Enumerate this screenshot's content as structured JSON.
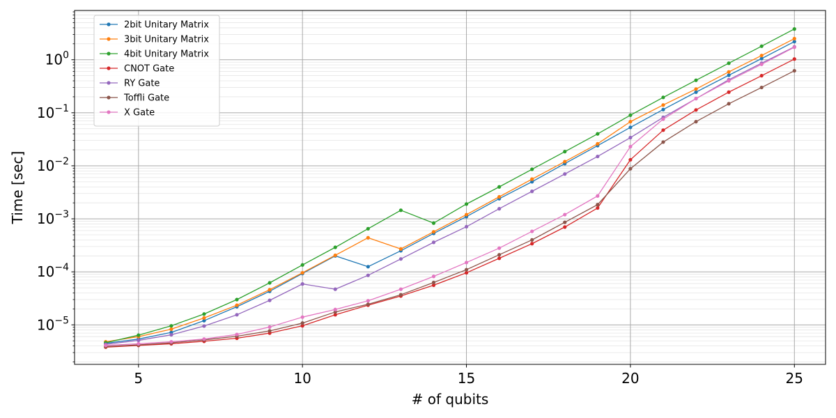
{
  "chart_data": {
    "type": "line",
    "title": "",
    "xlabel": "# of qubits",
    "ylabel": "Time [sec]",
    "yscale": "log",
    "xlim": [
      3.05,
      25.95
    ],
    "ylim": [
      1.8e-06,
      8.5
    ],
    "grid": true,
    "legend_position": "top-left",
    "x": [
      4,
      5,
      6,
      7,
      8,
      9,
      10,
      11,
      12,
      13,
      14,
      15,
      16,
      17,
      18,
      19,
      20,
      21,
      22,
      23,
      24,
      25
    ],
    "x_ticks": [
      {
        "value": 5,
        "label": "5"
      },
      {
        "value": 10,
        "label": "10"
      },
      {
        "value": 15,
        "label": "15"
      },
      {
        "value": 20,
        "label": "20"
      },
      {
        "value": 25,
        "label": "25"
      }
    ],
    "y_ticks": [
      {
        "exp": -5,
        "base": "10",
        "sup": "−5"
      },
      {
        "exp": -4,
        "base": "10",
        "sup": "−4"
      },
      {
        "exp": -3,
        "base": "10",
        "sup": "−3"
      },
      {
        "exp": -2,
        "base": "10",
        "sup": "−2"
      },
      {
        "exp": -1,
        "base": "10",
        "sup": "−1"
      },
      {
        "exp": 0,
        "base": "10",
        "sup": "0"
      }
    ],
    "series": [
      {
        "name": "2bit Unitary Matrix",
        "color": "#1f77b4",
        "values": [
          4.5e-06,
          5.4e-06,
          7.2e-06,
          1.2e-05,
          2.2e-05,
          4.3e-05,
          9.3e-05,
          0.0002,
          0.000125,
          0.00025,
          0.00053,
          0.0011,
          0.0024,
          0.005,
          0.011,
          0.024,
          0.053,
          0.115,
          0.245,
          0.51,
          1.05,
          2.2
        ]
      },
      {
        "name": "3bit Unitary Matrix",
        "color": "#ff7f0e",
        "values": [
          4.8e-06,
          6e-06,
          8.3e-06,
          1.35e-05,
          2.35e-05,
          4.6e-05,
          9.6e-05,
          0.000205,
          0.00044,
          0.00027,
          0.00057,
          0.0012,
          0.0026,
          0.0056,
          0.012,
          0.026,
          0.068,
          0.14,
          0.28,
          0.59,
          1.2,
          2.5
        ]
      },
      {
        "name": "4bit Unitary Matrix",
        "color": "#2ca02c",
        "values": [
          4.6e-06,
          6.4e-06,
          9.6e-06,
          1.6e-05,
          3e-05,
          6.2e-05,
          0.000135,
          0.00029,
          0.00065,
          0.00145,
          0.00083,
          0.0019,
          0.004,
          0.0086,
          0.0185,
          0.04,
          0.09,
          0.195,
          0.41,
          0.86,
          1.8,
          3.8
        ]
      },
      {
        "name": "CNOT Gate",
        "color": "#d62728",
        "values": [
          3.8e-06,
          4.1e-06,
          4.4e-06,
          4.9e-06,
          5.6e-06,
          7e-06,
          9.6e-06,
          1.55e-05,
          2.35e-05,
          3.5e-05,
          5.6e-05,
          9.6e-05,
          0.00018,
          0.00034,
          0.0007,
          0.0016,
          0.013,
          0.047,
          0.113,
          0.245,
          0.5,
          1.03
        ]
      },
      {
        "name": "RY Gate",
        "color": "#9467bd",
        "values": [
          4.3e-06,
          5.1e-06,
          6.5e-06,
          9.5e-06,
          1.55e-05,
          2.9e-05,
          5.9e-05,
          4.7e-05,
          8.6e-05,
          0.000175,
          0.00036,
          0.00071,
          0.00155,
          0.0033,
          0.007,
          0.015,
          0.034,
          0.082,
          0.185,
          0.42,
          0.86,
          1.75
        ]
      },
      {
        "name": "Toffli Gate",
        "color": "#8c564b",
        "values": [
          3.9e-06,
          4.2e-06,
          4.6e-06,
          5.2e-06,
          6.1e-06,
          7.7e-06,
          1.08e-05,
          1.75e-05,
          2.45e-05,
          3.7e-05,
          6.3e-05,
          0.00011,
          0.00021,
          0.0004,
          0.00086,
          0.00185,
          0.0088,
          0.028,
          0.068,
          0.148,
          0.3,
          0.62
        ]
      },
      {
        "name": "X Gate",
        "color": "#e377c2",
        "values": [
          4.1e-06,
          4.4e-06,
          4.8e-06,
          5.4e-06,
          6.6e-06,
          9.1e-06,
          1.4e-05,
          1.95e-05,
          2.85e-05,
          4.7e-05,
          8.2e-05,
          0.00015,
          0.00028,
          0.00058,
          0.0012,
          0.0027,
          0.023,
          0.076,
          0.185,
          0.4,
          0.82,
          1.72
        ]
      }
    ]
  }
}
